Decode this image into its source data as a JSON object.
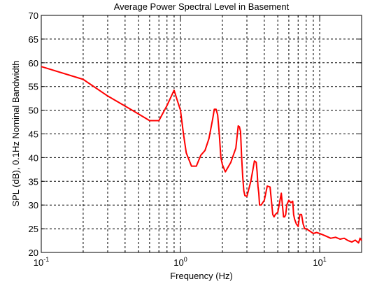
{
  "chart_data": {
    "type": "line",
    "title": "Average Power Spectral Level in Basement",
    "xlabel": "Frequency (Hz)",
    "ylabel": "SPL (dB), 0.1Hz Nominal Bandwidth",
    "xscale": "log",
    "xlim": [
      0.1,
      20
    ],
    "ylim": [
      20,
      70
    ],
    "xticks": [
      {
        "base": "10",
        "exp": "-1",
        "value": 0.1
      },
      {
        "base": "10",
        "exp": "0",
        "value": 1
      },
      {
        "base": "10",
        "exp": "1",
        "value": 10
      }
    ],
    "yticks": [
      20,
      25,
      30,
      35,
      40,
      45,
      50,
      55,
      60,
      65,
      70
    ],
    "grid": true,
    "line_color": "#ff0000",
    "series": [
      {
        "x": [
          0.1,
          0.2,
          0.3,
          0.45,
          0.6,
          0.7,
          0.8,
          0.9,
          0.95,
          1.0,
          1.05,
          1.1,
          1.2,
          1.3,
          1.4,
          1.5,
          1.6,
          1.7,
          1.75,
          1.8,
          1.85,
          1.9,
          1.95,
          2.0,
          2.1,
          2.3,
          2.5,
          2.6,
          2.65,
          2.7,
          2.75,
          2.8,
          2.85,
          2.9,
          3.0,
          3.2,
          3.4,
          3.5,
          3.55,
          3.6,
          3.65,
          3.7,
          3.8,
          4.0,
          4.2,
          4.4,
          4.6,
          4.7,
          4.8,
          5.0,
          5.3,
          5.5,
          5.6,
          5.7,
          5.8,
          6.0,
          6.2,
          6.4,
          6.5,
          6.6,
          6.8,
          7.0,
          7.2,
          7.4,
          7.6,
          7.8,
          8.0,
          8.5,
          9.0,
          9.5,
          10,
          11,
          12,
          13,
          14,
          15,
          16,
          17,
          18,
          19,
          19.5,
          20
        ],
        "y": [
          59.2,
          56.5,
          53.0,
          50.0,
          47.8,
          47.8,
          51.0,
          54.2,
          52.0,
          50.0,
          45.0,
          41.0,
          38.2,
          38.2,
          40.5,
          41.5,
          44.0,
          48.0,
          50.2,
          50.2,
          49.0,
          45.0,
          40.0,
          38.5,
          37.0,
          39.0,
          42.0,
          46.7,
          46.5,
          45.5,
          40.0,
          36.0,
          33.0,
          32.0,
          31.8,
          35.0,
          39.3,
          39.0,
          37.0,
          34.0,
          32.5,
          30.0,
          30.0,
          31.0,
          34.0,
          33.8,
          28.0,
          27.5,
          28.0,
          28.5,
          32.5,
          27.5,
          27.5,
          28.0,
          30.0,
          31.0,
          30.5,
          30.8,
          28.0,
          27.0,
          26.0,
          25.5,
          28.0,
          28.0,
          26.0,
          25.0,
          25.0,
          24.5,
          24.0,
          24.2,
          24.0,
          23.5,
          23.0,
          23.2,
          22.8,
          23.0,
          22.5,
          22.2,
          22.6,
          22.0,
          23.0,
          22.5
        ]
      }
    ]
  }
}
